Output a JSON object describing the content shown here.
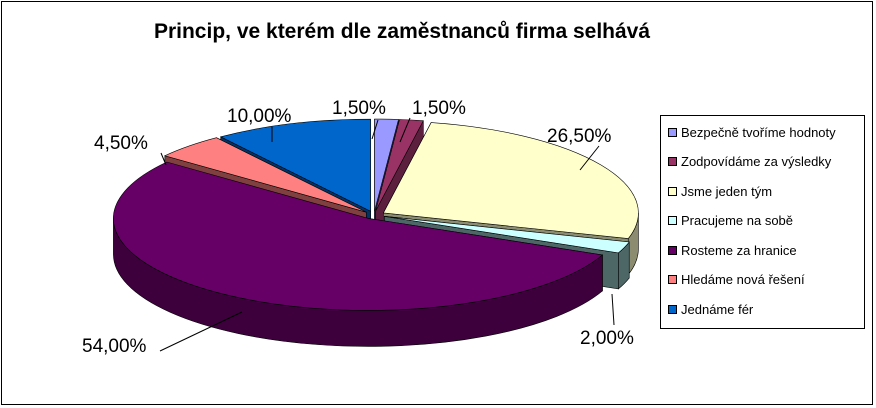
{
  "chart_data": {
    "type": "pie",
    "title": "Princip, ve kterém dle zaměstnanců firma selhává",
    "legend_position": "right",
    "slices": [
      {
        "name": "Bezpečně tvoříme hodnoty",
        "value": 1.5,
        "label": "1,50%",
        "color": "#9999ff",
        "side": "#4d4d99"
      },
      {
        "name": "Zodpovídáme za výsledky",
        "value": 1.5,
        "label": "1,50%",
        "color": "#993366",
        "side": "#5c1f3d"
      },
      {
        "name": "Jsme jeden tým",
        "value": 26.5,
        "label": "26,50%",
        "color": "#ffffcc",
        "side": "#8c8c70"
      },
      {
        "name": "Pracujeme na sobě",
        "value": 2.0,
        "label": "2,00%",
        "color": "#ccffff",
        "side": "#4d6666"
      },
      {
        "name": "Rosteme za hranice",
        "value": 54.0,
        "label": "54,00%",
        "color": "#660066",
        "side": "#3d003d"
      },
      {
        "name": "Hledáme nová řešení",
        "value": 4.5,
        "label": "4,50%",
        "color": "#ff8080",
        "side": "#804040"
      },
      {
        "name": "Jednáme fér",
        "value": 10.0,
        "label": "10,00%",
        "color": "#0066cc",
        "side": "#003366"
      }
    ]
  }
}
